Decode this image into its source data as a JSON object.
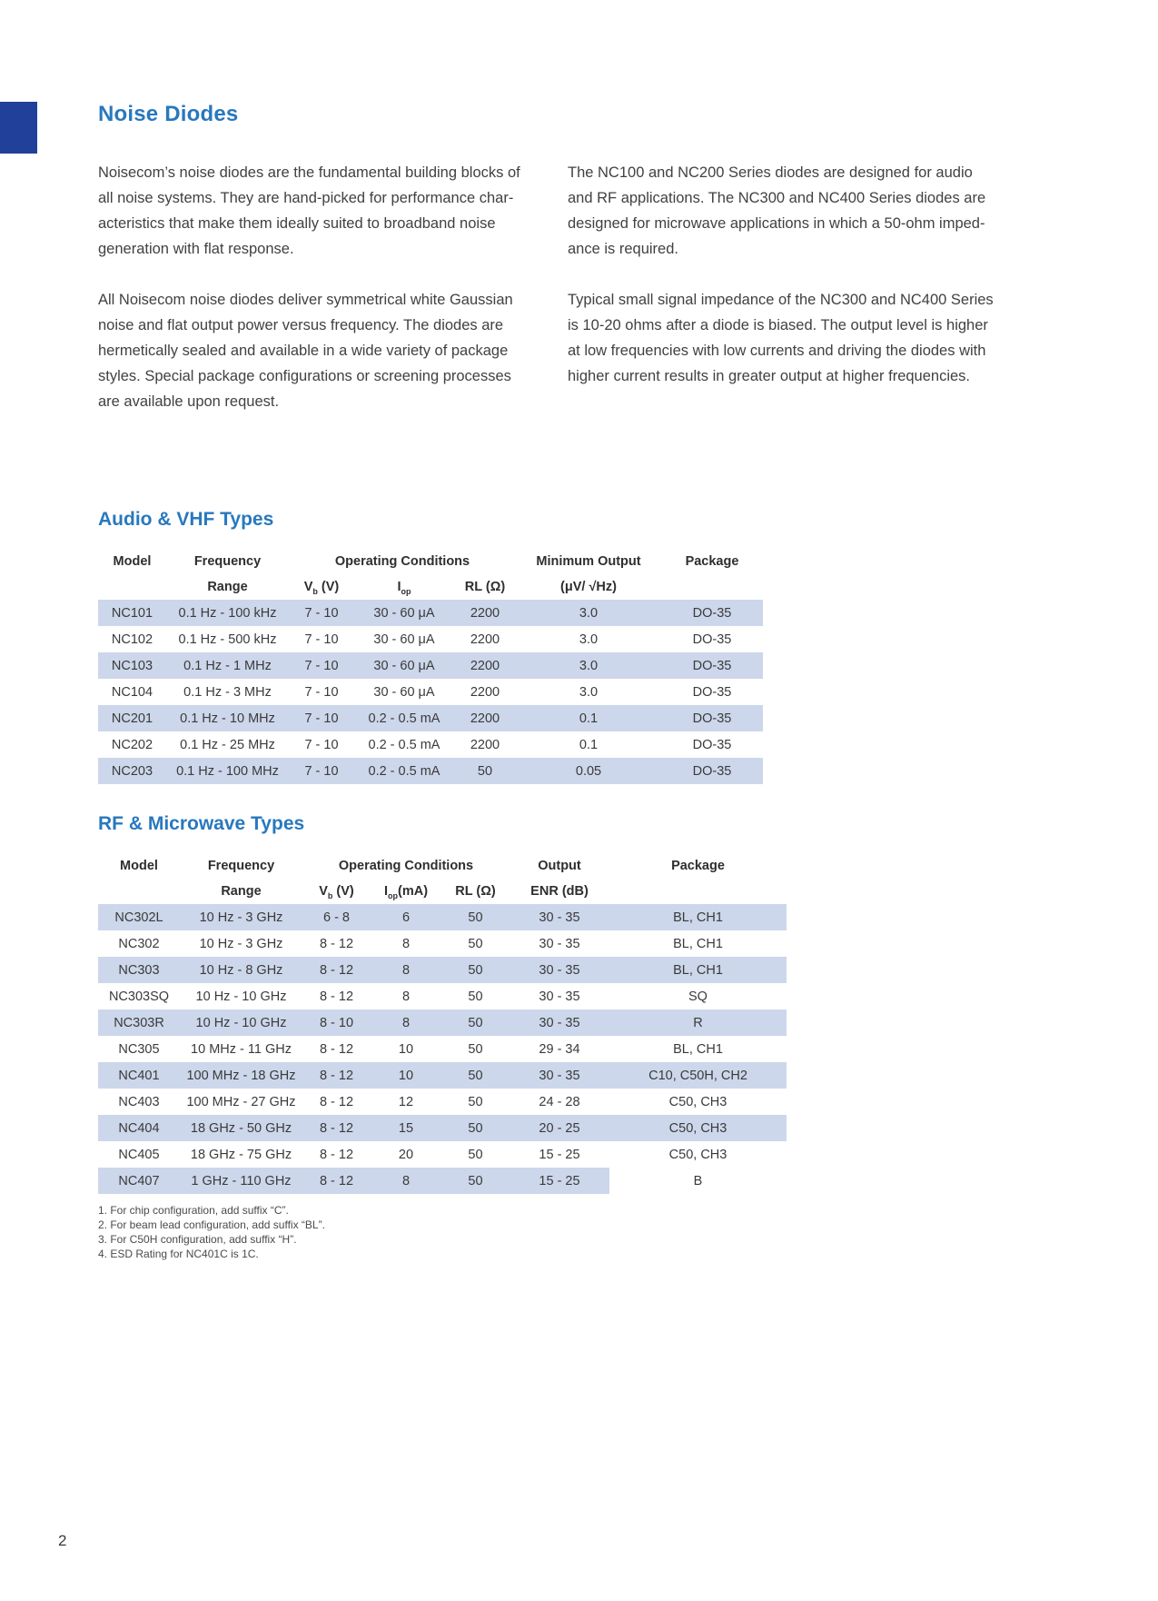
{
  "page_number": "2",
  "title": "Noise Diodes",
  "intro": {
    "left": [
      "Noisecom’s noise diodes are the fundamental building blocks of\nall noise systems. They are hand-picked for performance char-\nacteristics that make them ideally suited to broadband noise\ngeneration with flat response.",
      "All Noisecom noise diodes deliver symmetrical white Gaussian\nnoise and flat output power versus frequency. The diodes are\nhermetically sealed and available in a wide variety of package\nstyles. Special package configurations or screening processes\nare available upon request."
    ],
    "right": [
      "The NC100 and NC200 Series diodes are designed for audio\nand RF applications. The NC300 and NC400 Series diodes are\ndesigned for microwave applications in which a 50-ohm imped-\nance is required.",
      "Typical small signal impedance of the NC300 and NC400 Series\nis 10-20 ohms after a diode is biased. The output level is higher\nat low frequencies with low currents and driving the diodes with\nhigher current results in greater output at higher frequencies."
    ]
  },
  "audio_table": {
    "title": "Audio & VHF Types",
    "headers": {
      "model": "Model",
      "frequency": "Frequency",
      "range": "Range",
      "operating": "Operating Conditions",
      "vb_main": "V",
      "vb_sub": "b",
      "vb_rest": " (V)",
      "iop_main": "I",
      "iop_sub": "op",
      "iop_rest": "",
      "rl": "RL (Ω)",
      "min_output": "Minimum Output",
      "min_output_unit": "(μV/ √Hz)",
      "package": "Package"
    },
    "rows": [
      [
        "NC101",
        "0.1 Hz - 100 kHz",
        "7 - 10",
        "30 - 60 μA",
        "2200",
        "3.0",
        "DO-35"
      ],
      [
        "NC102",
        "0.1 Hz - 500 kHz",
        "7 - 10",
        "30 - 60 μA",
        "2200",
        "3.0",
        "DO-35"
      ],
      [
        "NC103",
        "0.1 Hz - 1 MHz",
        "7 - 10",
        "30 - 60 μA",
        "2200",
        "3.0",
        "DO-35"
      ],
      [
        "NC104",
        "0.1 Hz - 3 MHz",
        "7 - 10",
        "30 - 60 μA",
        "2200",
        "3.0",
        "DO-35"
      ],
      [
        "NC201",
        "0.1 Hz - 10 MHz",
        "7 - 10",
        "0.2 - 0.5 mA",
        "2200",
        "0.1",
        "DO-35"
      ],
      [
        "NC202",
        "0.1 Hz - 25 MHz",
        "7 - 10",
        "0.2 - 0.5 mA",
        "2200",
        "0.1",
        "DO-35"
      ],
      [
        "NC203",
        "0.1 Hz - 100 MHz",
        "7 - 10",
        "0.2 - 0.5 mA",
        "50",
        "0.05",
        "DO-35"
      ]
    ]
  },
  "rf_table": {
    "title": "RF & Microwave Types",
    "headers": {
      "model": "Model",
      "frequency": "Frequency",
      "range": "Range",
      "operating": "Operating Conditions",
      "vb_main": "V",
      "vb_sub": "b",
      "vb_rest": " (V)",
      "iop_main": "I",
      "iop_sub": "op",
      "iop_rest": "(mA)",
      "rl": "RL (Ω)",
      "output": "Output",
      "enr": "ENR (dB)",
      "package": "Package"
    },
    "rows": [
      [
        "NC302L",
        "10 Hz - 3 GHz",
        "6 - 8",
        "6",
        "50",
        "30 - 35",
        "BL, CH1"
      ],
      [
        "NC302",
        "10 Hz - 3 GHz",
        "8 - 12",
        "8",
        "50",
        "30 - 35",
        "BL, CH1"
      ],
      [
        "NC303",
        "10 Hz - 8 GHz",
        "8 - 12",
        "8",
        "50",
        "30 - 35",
        "BL, CH1"
      ],
      [
        "NC303SQ",
        "10 Hz - 10 GHz",
        "8 - 12",
        "8",
        "50",
        "30 - 35",
        "SQ"
      ],
      [
        "NC303R",
        "10 Hz - 10 GHz",
        "8 - 10",
        "8",
        "50",
        "30 - 35",
        "R"
      ],
      [
        "NC305",
        "10 MHz - 11 GHz",
        "8 - 12",
        "10",
        "50",
        "29 - 34",
        "BL, CH1"
      ],
      [
        "NC401",
        "100 MHz - 18 GHz",
        "8 - 12",
        "10",
        "50",
        "30 - 35",
        "C10, C50H, CH2"
      ],
      [
        "NC403",
        "100 MHz - 27 GHz",
        "8 - 12",
        "12",
        "50",
        "24 - 28",
        "C50, CH3"
      ],
      [
        "NC404",
        "18 GHz - 50 GHz",
        "8 - 12",
        "15",
        "50",
        "20 - 25",
        "C50, CH3"
      ],
      [
        "NC405",
        "18 GHz - 75 GHz",
        "8 - 12",
        "20",
        "50",
        "15 - 25",
        "C50, CH3"
      ],
      [
        "NC407",
        "1 GHz - 110 GHz",
        "8 - 12",
        "8",
        "50",
        "15 - 25",
        "B"
      ]
    ]
  },
  "footnotes": [
    "1.  For chip configuration, add suffix “C”.",
    "2.  For beam lead configuration, add suffix “BL”.",
    "3.  For C50H configuration, add suffix “H”.",
    "4.  ESD Rating for NC401C is 1C."
  ]
}
